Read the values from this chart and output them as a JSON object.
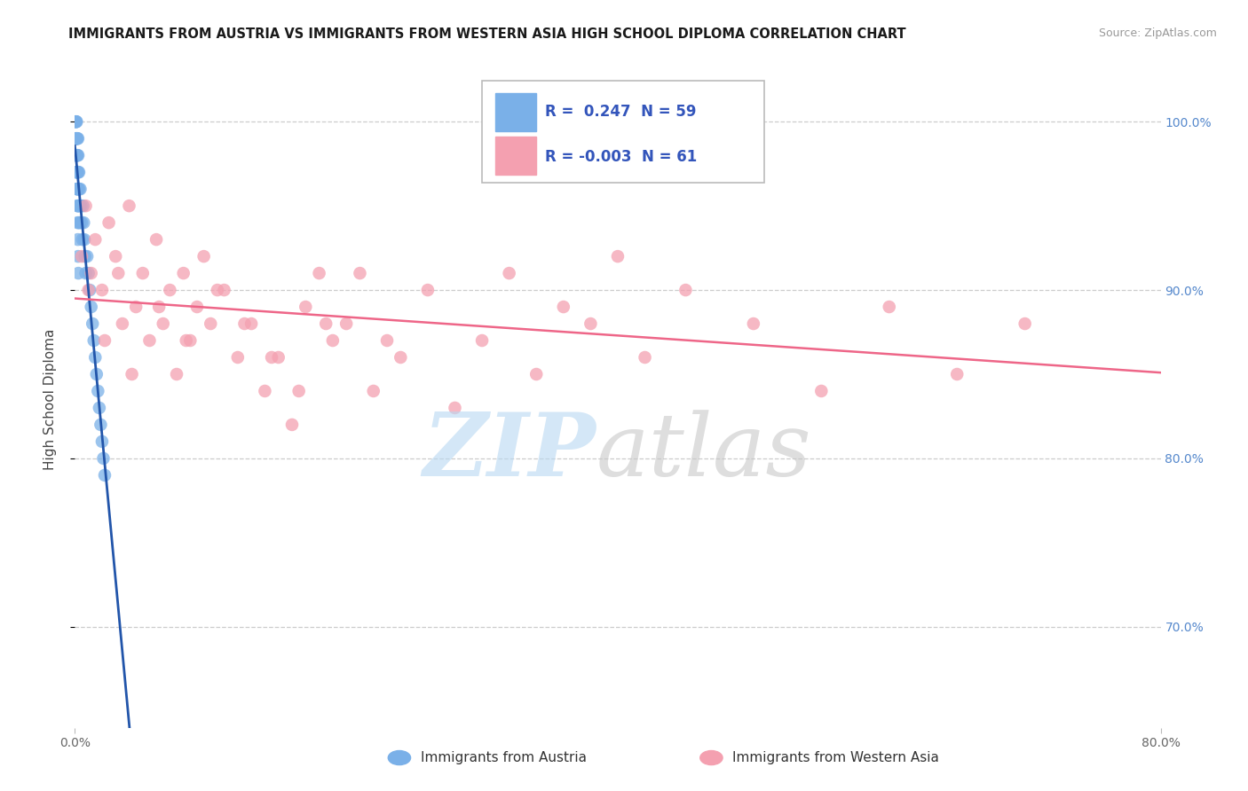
{
  "title": "IMMIGRANTS FROM AUSTRIA VS IMMIGRANTS FROM WESTERN ASIA HIGH SCHOOL DIPLOMA CORRELATION CHART",
  "source": "Source: ZipAtlas.com",
  "ylabel": "High School Diploma",
  "watermark_zip": "ZIP",
  "watermark_atlas": "atlas",
  "legend_text1": "R =  0.247  N = 59",
  "legend_text2": "R = -0.003  N = 61",
  "austria_color": "#7ab0e8",
  "western_asia_color": "#f4a0b0",
  "austria_trend_color": "#2255aa",
  "western_asia_trend_color": "#ee6688",
  "background_color": "#ffffff",
  "grid_color": "#cccccc",
  "right_tick_color": "#5588cc",
  "xlim": [
    0.0,
    80.0
  ],
  "ylim": [
    64.0,
    103.0
  ],
  "yticks": [
    70.0,
    80.0,
    90.0,
    100.0
  ],
  "austria_x": [
    0.05,
    0.08,
    0.09,
    0.1,
    0.11,
    0.12,
    0.13,
    0.14,
    0.15,
    0.16,
    0.17,
    0.18,
    0.19,
    0.2,
    0.21,
    0.22,
    0.23,
    0.24,
    0.25,
    0.26,
    0.27,
    0.28,
    0.3,
    0.32,
    0.35,
    0.38,
    0.4,
    0.45,
    0.5,
    0.55,
    0.6,
    0.65,
    0.7,
    0.75,
    0.8,
    0.9,
    1.0,
    1.1,
    1.2,
    1.3,
    1.4,
    1.5,
    1.6,
    1.7,
    1.8,
    1.9,
    2.0,
    2.1,
    2.2,
    0.06,
    0.07,
    0.115,
    0.135,
    0.155,
    0.175,
    0.195,
    0.215,
    0.235,
    0.255
  ],
  "austria_y": [
    100,
    99,
    100,
    99,
    98,
    97,
    100,
    99,
    98,
    97,
    96,
    99,
    98,
    97,
    96,
    95,
    99,
    98,
    97,
    96,
    95,
    94,
    97,
    96,
    95,
    94,
    96,
    95,
    94,
    93,
    95,
    94,
    93,
    92,
    91,
    92,
    91,
    90,
    89,
    88,
    87,
    86,
    85,
    84,
    83,
    82,
    81,
    80,
    79,
    100,
    99,
    98,
    97,
    96,
    95,
    94,
    93,
    92,
    91
  ],
  "western_asia_x": [
    0.5,
    0.8,
    1.2,
    1.5,
    2.0,
    2.5,
    3.0,
    3.5,
    4.0,
    4.5,
    5.0,
    5.5,
    6.0,
    6.5,
    7.0,
    7.5,
    8.0,
    8.5,
    9.0,
    9.5,
    10.0,
    11.0,
    12.0,
    13.0,
    14.0,
    15.0,
    16.0,
    17.0,
    18.0,
    19.0,
    20.0,
    22.0,
    24.0,
    26.0,
    28.0,
    30.0,
    32.0,
    34.0,
    36.0,
    38.0,
    40.0,
    42.0,
    45.0,
    50.0,
    55.0,
    60.0,
    65.0,
    70.0,
    1.0,
    2.2,
    3.2,
    4.2,
    6.2,
    8.2,
    10.5,
    12.5,
    14.5,
    16.5,
    18.5,
    21.0,
    23.0
  ],
  "western_asia_y": [
    92,
    95,
    91,
    93,
    90,
    94,
    92,
    88,
    95,
    89,
    91,
    87,
    93,
    88,
    90,
    85,
    91,
    87,
    89,
    92,
    88,
    90,
    86,
    88,
    84,
    86,
    82,
    89,
    91,
    87,
    88,
    84,
    86,
    90,
    83,
    87,
    91,
    85,
    89,
    88,
    92,
    86,
    90,
    88,
    84,
    89,
    85,
    88,
    90,
    87,
    91,
    85,
    89,
    87,
    90,
    88,
    86,
    84,
    88,
    91,
    87
  ]
}
